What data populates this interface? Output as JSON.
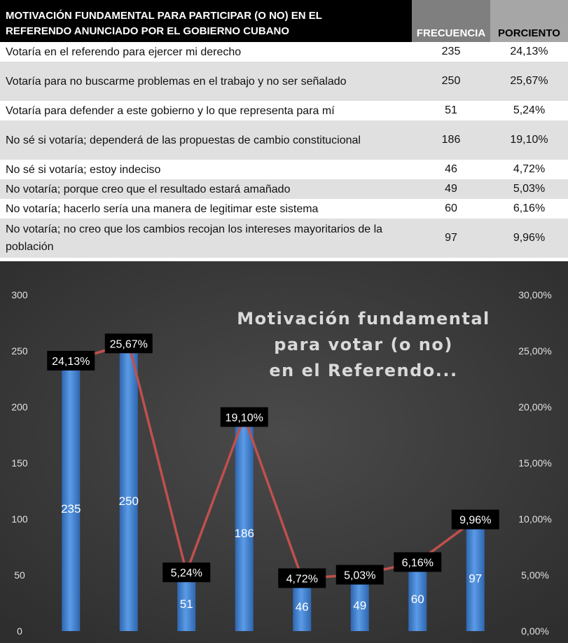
{
  "table": {
    "header": {
      "title_line1": "MOTIVACIÓN FUNDAMENTAL PARA PARTICIPAR (O NO) EN EL",
      "title_line2": "REFERENDO ANUNCIADO POR EL GOBIERNO CUBANO",
      "frecuencia": "FRECUENCIA",
      "porciento": "PORCIENTO"
    },
    "rows": [
      {
        "label": "Votaría en el referendo para ejercer mi derecho",
        "frecuencia": "235",
        "porciento": "24,13%"
      },
      {
        "label": "Votaría para no buscarme problemas en el trabajo y no ser señalado",
        "frecuencia": "250",
        "porciento": "25,67%"
      },
      {
        "label": "Votaría para defender a este gobierno y lo que representa para mí",
        "frecuencia": "51",
        "porciento": "5,24%"
      },
      {
        "label": "No sé si votaría; dependerá de las propuestas de cambio constitucional",
        "frecuencia": "186",
        "porciento": "19,10%"
      },
      {
        "label": "No sé si votaría; estoy indeciso",
        "frecuencia": "46",
        "porciento": "4,72%"
      },
      {
        "label": "No votaría; porque creo que el resultado estará amañado",
        "frecuencia": "49",
        "porciento": "5,03%"
      },
      {
        "label": "No votaría; hacerlo sería una manera de legitimar este sistema",
        "frecuencia": "60",
        "porciento": "6,16%"
      },
      {
        "label": "No votaría; no creo que los cambios recojan los intereses mayoritarios de la población",
        "frecuencia": "97",
        "porciento": "9,96%"
      }
    ]
  },
  "chart_data": {
    "type": "bar",
    "title_lines": [
      "Motivación fundamental",
      "para votar (o no)",
      "en el Referendo..."
    ],
    "categories": [
      "",
      "",
      "",
      "",
      "",
      "",
      "",
      ""
    ],
    "series": [
      {
        "kind": "bar",
        "axis": "left",
        "values": [
          235,
          250,
          51,
          186,
          46,
          49,
          60,
          97
        ],
        "labels": [
          "235",
          "250",
          "51",
          "186",
          "46",
          "49",
          "60",
          "97"
        ],
        "color": "#3f7fd0"
      },
      {
        "kind": "line",
        "axis": "right",
        "values": [
          24.13,
          25.67,
          5.24,
          19.1,
          4.72,
          5.03,
          6.16,
          9.96
        ],
        "labels": [
          "24,13%",
          "25,67%",
          "5,24%",
          "19,10%",
          "4,72%",
          "5,03%",
          "6,16%",
          "9,96%"
        ],
        "color": "#c0504d"
      }
    ],
    "ylim_left": [
      0,
      300
    ],
    "ylim_right": [
      0,
      30
    ],
    "yticks_left": [
      "0",
      "50",
      "100",
      "150",
      "200",
      "250",
      "300"
    ],
    "yticks_right": [
      "0,00%",
      "5,00%",
      "10,00%",
      "15,00%",
      "20,00%",
      "25,00%",
      "30,00%"
    ],
    "grid": false,
    "legend": "none",
    "colors": {
      "background": "#3a3a3a",
      "tick_text": "#e0e0e0",
      "label_box": "#000000",
      "label_text": "#ffffff",
      "title": "#d9d9d9"
    }
  }
}
